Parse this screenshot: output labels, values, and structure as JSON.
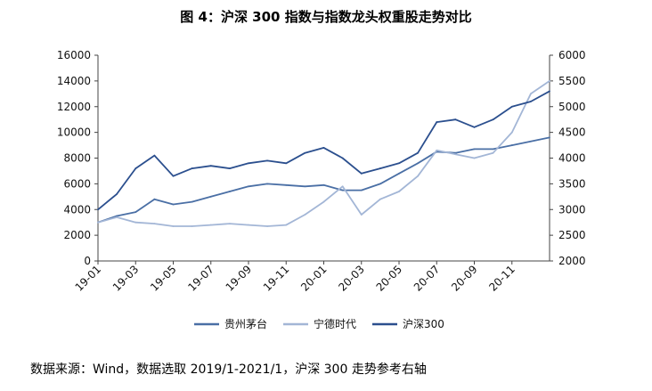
{
  "chart_data": {
    "type": "line",
    "title": "图 4：沪深 300 指数与指数龙头权重股走势对比",
    "source": "数据来源：Wind，数据选取 2019/1-2021/1，沪深 300 走势参考右轴",
    "x": [
      "19-01",
      "19-02",
      "19-03",
      "19-04",
      "19-05",
      "19-06",
      "19-07",
      "19-08",
      "19-09",
      "19-10",
      "19-11",
      "19-12",
      "20-01",
      "20-02",
      "20-03",
      "20-04",
      "20-05",
      "20-06",
      "20-07",
      "20-08",
      "20-09",
      "20-10",
      "20-11",
      "20-12",
      "21-01"
    ],
    "x_tick_labels": [
      "19-01",
      "19-03",
      "19-05",
      "19-07",
      "19-09",
      "19-11",
      "20-01",
      "20-03",
      "20-05",
      "20-07",
      "20-09",
      "20-11"
    ],
    "y_left": {
      "min": 0,
      "max": 16000,
      "ticks": [
        0,
        2000,
        4000,
        6000,
        8000,
        10000,
        12000,
        14000,
        16000
      ]
    },
    "y_right": {
      "min": 2000,
      "max": 6000,
      "ticks": [
        2000,
        2500,
        3000,
        3500,
        4000,
        4500,
        5000,
        5500,
        6000
      ]
    },
    "series": [
      {
        "name": "贵州茅台",
        "axis": "left",
        "color": "#4a6fa5",
        "values": [
          3000,
          3500,
          3800,
          4800,
          4400,
          4600,
          5000,
          5400,
          5800,
          6000,
          5900,
          5800,
          5900,
          5500,
          5500,
          6000,
          6800,
          7600,
          8500,
          8400,
          8700,
          8700,
          9000,
          9300,
          9600
        ]
      },
      {
        "name": "宁德时代",
        "axis": "left",
        "color": "#a3b6d6",
        "values": [
          3000,
          3400,
          3000,
          2900,
          2700,
          2700,
          2800,
          2900,
          2800,
          2700,
          2800,
          3600,
          4600,
          5800,
          3600,
          4800,
          5400,
          6600,
          8600,
          8300,
          8000,
          8400,
          10000,
          13000,
          14000
        ]
      },
      {
        "name": "沪深300",
        "axis": "right",
        "color": "#2b4f8e",
        "values": [
          3000,
          3300,
          3800,
          4050,
          3650,
          3800,
          3850,
          3800,
          3900,
          3950,
          3900,
          4100,
          4200,
          4000,
          3700,
          3800,
          3900,
          4100,
          4700,
          4750,
          4600,
          4750,
          5000,
          5100,
          5300
        ]
      }
    ]
  }
}
